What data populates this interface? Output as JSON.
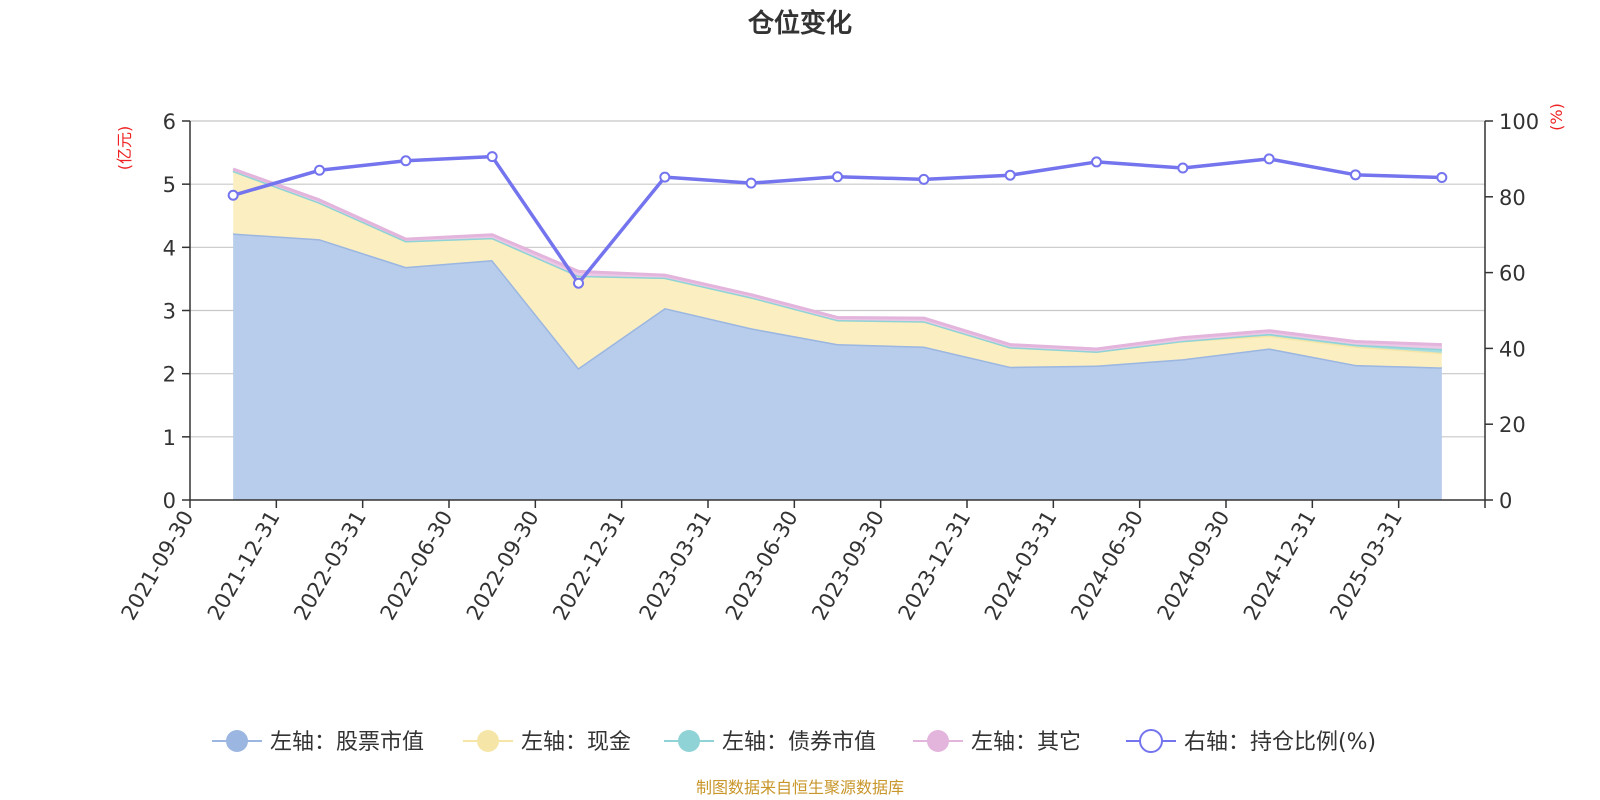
{
  "chart_data": {
    "type": "area",
    "title": "仓位变化",
    "left_axis_unit": "(亿元)",
    "right_axis_unit": "(%)",
    "categories": [
      "2021-09-30",
      "2021-12-31",
      "2022-03-31",
      "2022-06-30",
      "2022-09-30",
      "2022-12-31",
      "2023-03-31",
      "2023-06-30",
      "2023-09-30",
      "2023-12-31",
      "2024-03-31",
      "2024-06-30",
      "2024-09-30",
      "2024-12-31",
      "2025-03-31"
    ],
    "y_left": {
      "min": 0,
      "max": 6,
      "ticks": [
        "0",
        "1",
        "2",
        "3",
        "4",
        "5",
        "6"
      ]
    },
    "y_right": {
      "min": 0,
      "max": 100,
      "ticks": [
        "0",
        "20",
        "40",
        "60",
        "80",
        "100"
      ]
    },
    "grid": true,
    "legend_position": "bottom",
    "series": [
      {
        "name": "左轴：股票市值",
        "axis": "left",
        "kind": "stacked-area",
        "color": "#9bb6e0",
        "fill": "#b8cceb",
        "values": [
          4.22,
          4.13,
          3.69,
          3.8,
          2.09,
          3.04,
          2.72,
          2.47,
          2.43,
          2.11,
          2.13,
          2.23,
          2.4,
          2.14,
          2.1
        ]
      },
      {
        "name": "左轴：现金",
        "axis": "left",
        "kind": "stacked-area",
        "color": "#f5e6a8",
        "fill": "#fbefc2",
        "values": [
          0.99,
          0.58,
          0.41,
          0.35,
          1.46,
          0.48,
          0.49,
          0.38,
          0.4,
          0.31,
          0.22,
          0.29,
          0.2,
          0.29,
          0.23
        ]
      },
      {
        "name": "左轴：债券市值",
        "axis": "left",
        "kind": "stacked-area",
        "color": "#8fd3d6",
        "fill": "#a8dde0",
        "values": [
          0,
          0,
          0,
          0,
          0,
          0,
          0,
          0,
          0,
          0,
          0,
          0,
          0.03,
          0.03,
          0.06
        ]
      },
      {
        "name": "左轴：其它",
        "axis": "left",
        "kind": "stacked-area",
        "color": "#e3b4dc",
        "fill": "#ecc8e6",
        "values": [
          0.03,
          0.04,
          0.03,
          0.05,
          0.07,
          0.04,
          0.04,
          0.04,
          0.05,
          0.04,
          0.04,
          0.05,
          0.05,
          0.05,
          0.07
        ]
      },
      {
        "name": "右轴：持仓比例(%)",
        "axis": "right",
        "kind": "line",
        "color": "#7474ee",
        "values": [
          80.4,
          87.0,
          89.5,
          90.6,
          57.2,
          85.2,
          83.6,
          85.3,
          84.6,
          85.7,
          89.2,
          87.6,
          90.0,
          85.8,
          85.1
        ]
      }
    ],
    "source_note": "制图数据来自恒生聚源数据库"
  }
}
